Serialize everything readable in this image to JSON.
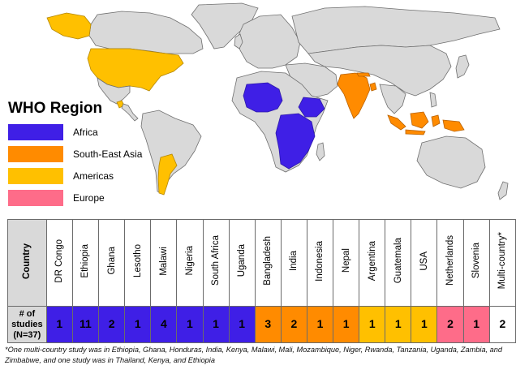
{
  "map": {
    "region_colors": {
      "Africa": "#3f1fe6",
      "South-East Asia": "#ff8b00",
      "Americas": "#ffc000",
      "Europe": "#fe6c89",
      "Other": "#d9d9d9"
    }
  },
  "legend": {
    "title": "WHO Region",
    "items": [
      {
        "label": "Africa",
        "color": "#3f1fe6"
      },
      {
        "label": "South-East Asia",
        "color": "#ff8b00"
      },
      {
        "label": "Americas",
        "color": "#ffc000"
      },
      {
        "label": "Europe",
        "color": "#fe6c89"
      }
    ]
  },
  "table": {
    "header_country": "Country",
    "header_studies": "# of studies (N=37)",
    "countries": [
      {
        "name": "DR Congo",
        "count": "1",
        "region": "Africa"
      },
      {
        "name": "Ethiopia",
        "count": "11",
        "region": "Africa"
      },
      {
        "name": "Ghana",
        "count": "2",
        "region": "Africa"
      },
      {
        "name": "Lesotho",
        "count": "1",
        "region": "Africa"
      },
      {
        "name": "Malawi",
        "count": "4",
        "region": "Africa"
      },
      {
        "name": "Nigeria",
        "count": "1",
        "region": "Africa"
      },
      {
        "name": "South Africa",
        "count": "1",
        "region": "Africa"
      },
      {
        "name": "Uganda",
        "count": "1",
        "region": "Africa"
      },
      {
        "name": "Bangladesh",
        "count": "3",
        "region": "South-East Asia"
      },
      {
        "name": "India",
        "count": "2",
        "region": "South-East Asia"
      },
      {
        "name": "Indonesia",
        "count": "1",
        "region": "South-East Asia"
      },
      {
        "name": "Nepal",
        "count": "1",
        "region": "South-East Asia"
      },
      {
        "name": "Argentina",
        "count": "1",
        "region": "Americas"
      },
      {
        "name": "Guatemala",
        "count": "1",
        "region": "Americas"
      },
      {
        "name": "USA",
        "count": "1",
        "region": "Americas"
      },
      {
        "name": "Netherlands",
        "count": "2",
        "region": "Europe"
      },
      {
        "name": "Slovenia",
        "count": "1",
        "region": "Europe"
      },
      {
        "name": "Multi-country*",
        "count": "2",
        "region": "Multi"
      }
    ]
  },
  "footnote": "*One multi-country study was in Ethiopia, Ghana, Honduras, India, Kenya, Malawi, Mali, Mozambique, Niger, Rwanda, Tanzania, Uganda, Zambia, and Zimbabwe, and one study was in Thailand, Kenya, and Ethiopia"
}
